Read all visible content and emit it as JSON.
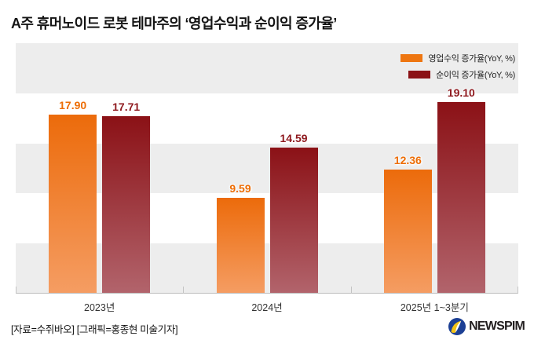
{
  "title": "A주 휴머노이드 로봇 테마주의 ‘영업수익과 순이익 증가율’",
  "legend": [
    {
      "label": "영업수익 증가율(YoY, %)",
      "color": "#ee7611"
    },
    {
      "label": "순이익 증가율(YoY, %)",
      "color": "#8b1216"
    }
  ],
  "chart_data": {
    "type": "bar",
    "title": "A주 휴머노이드 로봇 테마주의 ‘영업수익과 순이익 증가율’",
    "categories": [
      "2023년",
      "2024년",
      "2025년 1~3분기"
    ],
    "series": [
      {
        "name": "영업수익 증가율(YoY, %)",
        "values": [
          17.9,
          9.59,
          12.36
        ],
        "color_top": "#ec6b0b",
        "color_bottom": "#f59d63",
        "label_color": "#ed6d05"
      },
      {
        "name": "순이익 증가율(YoY, %)",
        "values": [
          17.71,
          14.59,
          19.1
        ],
        "color_top": "#8b1116",
        "color_bottom": "#b2646c",
        "label_color": "#8e181d"
      }
    ],
    "xlabel": "",
    "ylabel": "",
    "ylim": [
      0,
      25
    ],
    "band_step": 5,
    "grid": "horizontal-bands",
    "band_colors": [
      "#ededed",
      "#ffffff"
    ],
    "legend_position": "top-right"
  },
  "footer": {
    "source": "[자료=수쥐바오] [그래픽=홍종현 미술기자]",
    "logo_text": "NEWSPIM"
  }
}
